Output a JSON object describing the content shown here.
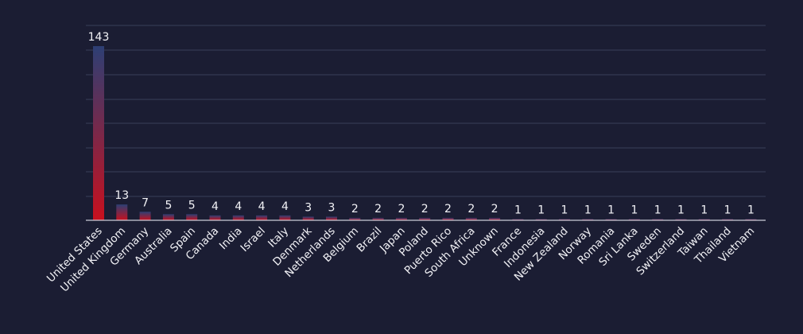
{
  "colors": {
    "background": "#1b1d33",
    "bar_top": "#2d3f74",
    "bar_bottom": "#c8101e",
    "grid": "#3a3e5a",
    "text": "#f2f2f6"
  },
  "chart_data": {
    "type": "bar",
    "title": "",
    "xlabel": "",
    "ylabel": "",
    "ylim": [
      0,
      143
    ],
    "grid": true,
    "legend": "none",
    "categories": [
      "United States",
      "United Kingdom",
      "Germany",
      "Australia",
      "Spain",
      "Canada",
      "India",
      "Israel",
      "Italy",
      "Denmark",
      "Netherlands",
      "Belgium",
      "Brazil",
      "Japan",
      "Poland",
      "Puerto Rico",
      "South Africa",
      "Unknown",
      "France",
      "Indonesia",
      "New Zealand",
      "Norway",
      "Romania",
      "Sri Lanka",
      "Sweden",
      "Switzerland",
      "Taiwan",
      "Thailand",
      "Vietnam"
    ],
    "values": [
      143,
      13,
      7,
      5,
      5,
      4,
      4,
      4,
      4,
      3,
      3,
      2,
      2,
      2,
      2,
      2,
      2,
      2,
      1,
      1,
      1,
      1,
      1,
      1,
      1,
      1,
      1,
      1,
      1
    ]
  }
}
